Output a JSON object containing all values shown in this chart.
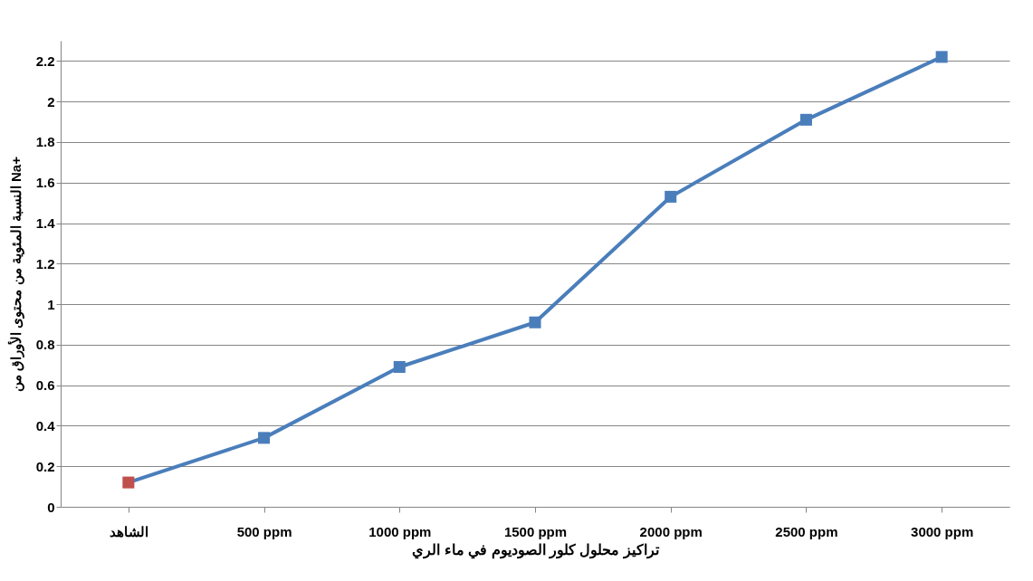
{
  "chart_data": {
    "type": "line",
    "xlabel": "تراكيز محلول كلور الصوديوم في ماء الري",
    "ylabel": "النسبة المئوية من محتوى الأوراق من  Na+",
    "categories": [
      "الشاهد",
      "500 ppm",
      "1000 ppm",
      "1500 ppm",
      "2000 ppm",
      "2500 ppm",
      "3000 ppm"
    ],
    "series": [
      {
        "color": "#4a7ebb",
        "colors": [
          "#c0504d",
          "#4a7ebb",
          "#4a7ebb",
          "#4a7ebb",
          "#4a7ebb",
          "#4a7ebb",
          "#4a7ebb"
        ],
        "values": [
          0.12,
          0.34,
          0.69,
          0.91,
          1.53,
          1.91,
          2.22
        ]
      }
    ],
    "ylim": [
      0,
      2.3
    ],
    "yticks": [
      0,
      0.2,
      0.4,
      0.6,
      0.8,
      1,
      1.2,
      1.4,
      1.6,
      1.8,
      2,
      2.2
    ],
    "grid": "y",
    "marker": "square",
    "line_style": "solid"
  }
}
